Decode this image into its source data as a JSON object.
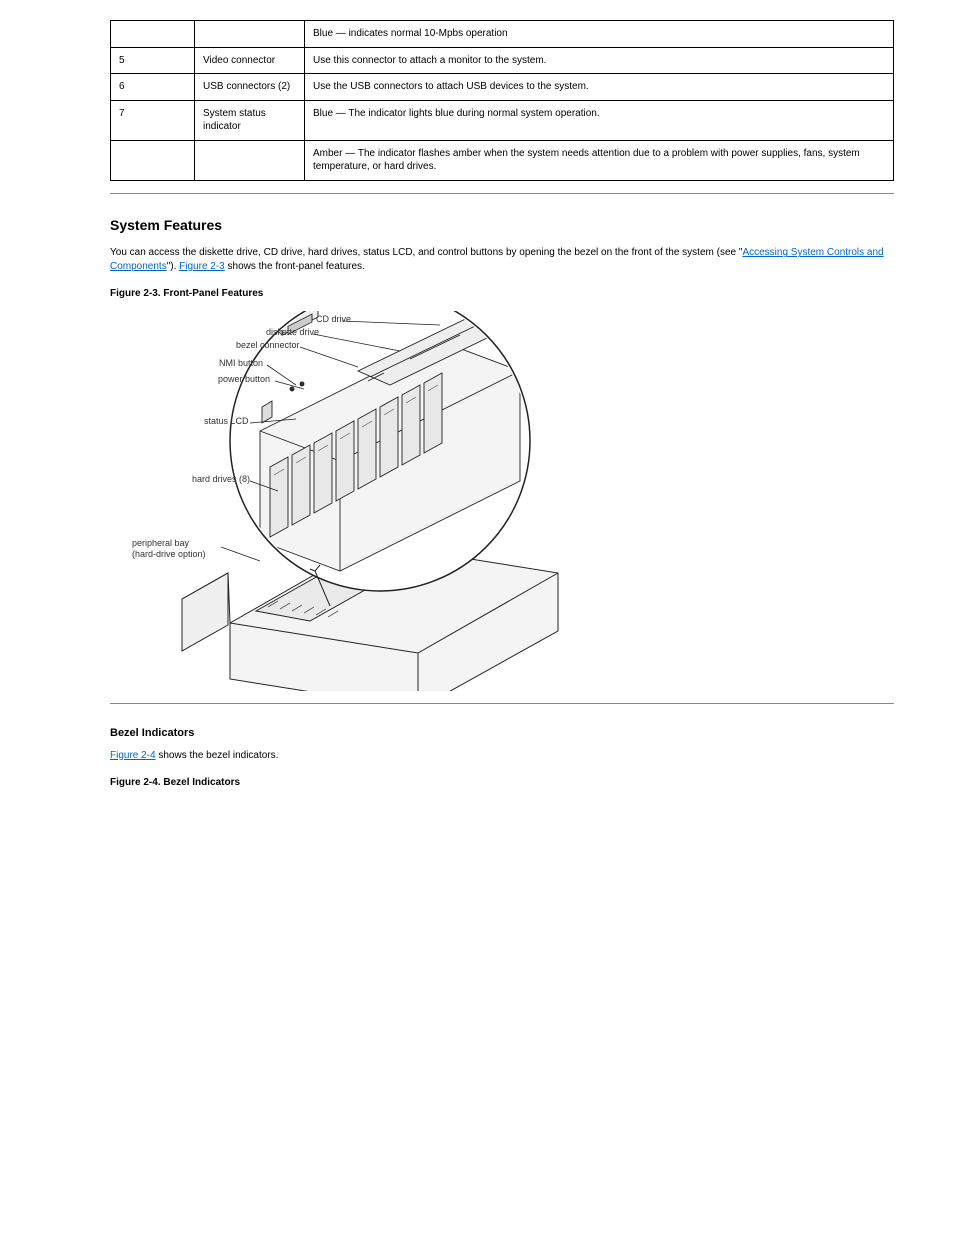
{
  "table": {
    "rows": [
      {
        "c1": "",
        "c2": "",
        "c3": "",
        "c4": "Blue — indicates normal 10-Mpbs operation"
      },
      {
        "c1": "5",
        "c2": "",
        "c3": "Video connector",
        "c4": "Use this connector to attach a monitor to the system."
      },
      {
        "c1": "6",
        "c2": "",
        "c3": "USB connectors (2)",
        "c4": "Use the USB connectors to attach USB devices to the system."
      },
      {
        "c1": "7",
        "c2": "",
        "c3": "System status indicator",
        "c4": "Blue — The indicator lights blue during normal system operation."
      },
      {
        "c1": "",
        "c2": "",
        "c3": "",
        "c4": "Amber — The indicator flashes amber when the system needs attention due to a problem with power supplies, fans, system temperature, or hard drives."
      }
    ]
  },
  "section_system": {
    "title": "System Features",
    "intro_a": "You can access the diskette drive, CD drive, hard drives, status LCD, and control buttons by opening the bezel on the front of the system (see ",
    "intro_link": "Accessing System Controls and Components",
    "intro_b": "). ",
    "fig_link": "Figure 2-3",
    "intro_c": " shows the front-panel features.",
    "figcap": "Figure 2-3. Front-Panel Features",
    "callouts": {
      "cd": "CD drive",
      "diskette": "diskette drive",
      "bezel": "bezel connector",
      "nmi": "NMI button",
      "power": "power button",
      "status": "status LCD",
      "hard": "hard drives (8)",
      "periph_a": "peripheral bay",
      "periph_b": "(hard-drive option)"
    }
  },
  "section_bezel": {
    "title": "Bezel Indicators",
    "link": "Figure 2-4",
    "text": " shows the bezel indicators.",
    "figcap": "Figure 2-4. Bezel Indicators"
  },
  "colors": {
    "link": "#0066cc",
    "diagram_stroke": "#222",
    "diagram_fill": "#f4f4f4",
    "slot_fill": "#e8e8e8",
    "text": "#333"
  }
}
